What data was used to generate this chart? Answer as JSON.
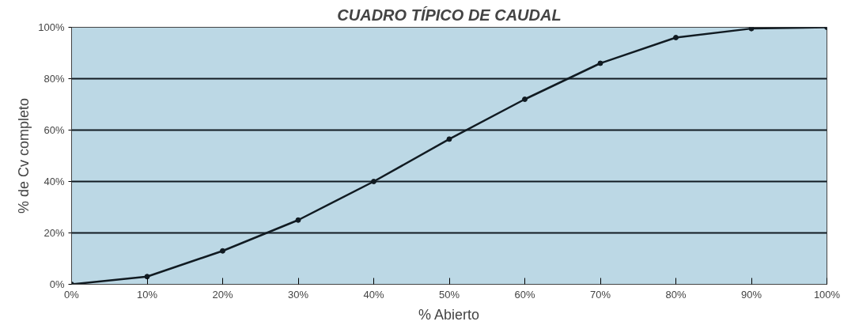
{
  "chart_data": {
    "type": "line",
    "title": "CUADRO TÍPICO DE CAUDAL",
    "xlabel": "% Abierto",
    "ylabel": "% de Cv completo",
    "x": [
      0,
      10,
      20,
      30,
      40,
      50,
      60,
      70,
      80,
      90,
      100
    ],
    "series": [
      {
        "color": "#111b22",
        "values": [
          0,
          3,
          13,
          25,
          40,
          56.5,
          72,
          86,
          96,
          99.5,
          100
        ]
      }
    ],
    "xlim": [
      0,
      100
    ],
    "ylim": [
      0,
      100
    ],
    "xticks": [
      {
        "value": 0,
        "label": "0%"
      },
      {
        "value": 10,
        "label": "10%"
      },
      {
        "value": 20,
        "label": "20%"
      },
      {
        "value": 30,
        "label": "30%"
      },
      {
        "value": 40,
        "label": "40%"
      },
      {
        "value": 50,
        "label": "50%"
      },
      {
        "value": 60,
        "label": "60%"
      },
      {
        "value": 70,
        "label": "70%"
      },
      {
        "value": 80,
        "label": "80%"
      },
      {
        "value": 90,
        "label": "90%"
      },
      {
        "value": 100,
        "label": "100%"
      }
    ],
    "yticks": [
      {
        "value": 0,
        "label": "0%"
      },
      {
        "value": 20,
        "label": "20%"
      },
      {
        "value": 40,
        "label": "40%"
      },
      {
        "value": 60,
        "label": "60%"
      },
      {
        "value": 80,
        "label": "80%"
      },
      {
        "value": 100,
        "label": "100%"
      }
    ],
    "grid": "y",
    "marker": "circle",
    "line_style": "solid"
  }
}
